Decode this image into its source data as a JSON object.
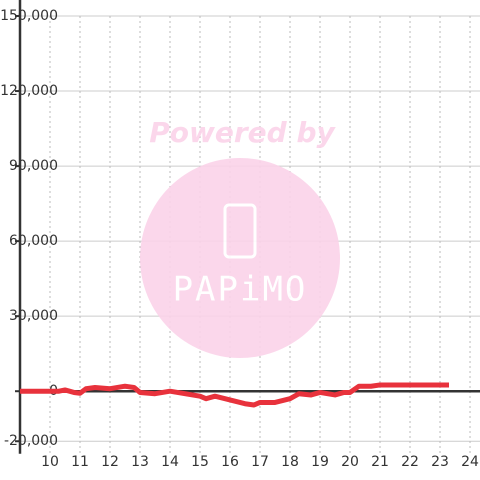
{
  "chart_data": {
    "type": "line",
    "watermark": {
      "line1": "Powered by",
      "line2": "PAPiMO"
    },
    "x": [
      9,
      10,
      10.3,
      10.5,
      10.8,
      11,
      11.2,
      11.5,
      12,
      12.5,
      12.8,
      13,
      13.5,
      14,
      14.5,
      15,
      15.2,
      15.5,
      16,
      16.5,
      16.8,
      17,
      17.5,
      18,
      18.3,
      18.7,
      19,
      19.5,
      19.8,
      20,
      20.3,
      20.7,
      21,
      22,
      23,
      23.3
    ],
    "series": [
      {
        "color": "#e8323c",
        "values": [
          0,
          0,
          0,
          500,
          -500,
          -800,
          1000,
          1500,
          1000,
          2000,
          1500,
          -500,
          -1000,
          0,
          -1000,
          -2000,
          -3000,
          -2000,
          -3500,
          -5000,
          -5500,
          -4500,
          -4500,
          -3000,
          -1000,
          -1500,
          -500,
          -1500,
          -500,
          -500,
          2000,
          2000,
          2500,
          2500,
          2500,
          2500
        ]
      }
    ],
    "xlim": [
      9,
      24.333
    ],
    "xticks": [
      10,
      11,
      12,
      13,
      14,
      15,
      16,
      17,
      18,
      19,
      20,
      21,
      22,
      23,
      24
    ],
    "ylim": [
      -25000,
      150000
    ],
    "yticks": [
      {
        "value": -20000,
        "label": "-20,000"
      },
      0,
      {
        "value": 30000,
        "label": "30,000"
      },
      {
        "value": 60000,
        "label": "60,000"
      },
      {
        "value": 90000,
        "label": "90,000"
      },
      {
        "value": 120000,
        "label": "120,000"
      },
      {
        "value": 150000,
        "label": "150,000"
      }
    ],
    "grid": true
  }
}
